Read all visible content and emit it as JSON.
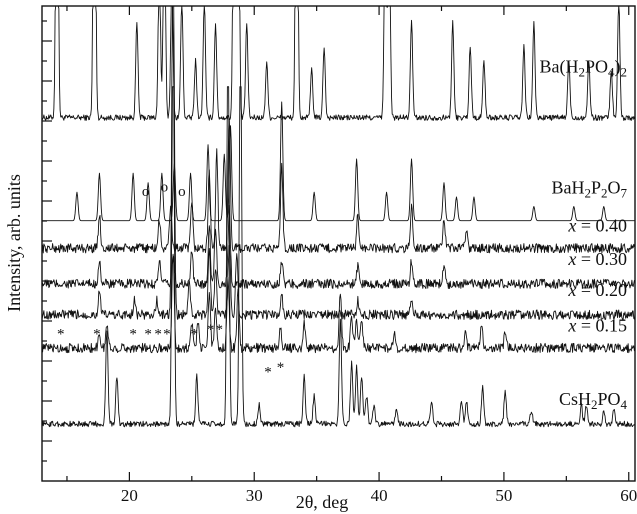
{
  "chart_data": {
    "type": "line",
    "xlabel": "2θ, deg",
    "ylabel": "Intensity, arb. units",
    "xlim": [
      13,
      60.5
    ],
    "x_ticks": [
      20,
      30,
      40,
      50,
      60
    ],
    "y_tick_labels": "none",
    "legend": "none",
    "grid": false,
    "series": [
      {
        "name": "Ba(H₂PO₄)₂",
        "label_parts": [
          "Ba(H",
          "2",
          "PO",
          "4",
          ")",
          "2"
        ],
        "baseline": 0.765,
        "noise": 0.006,
        "clip": 1.0,
        "peaks": [
          [
            14.2,
            0.9
          ],
          [
            17.2,
            0.9
          ],
          [
            20.6,
            0.2
          ],
          [
            22.4,
            0.35
          ],
          [
            22.8,
            0.5
          ],
          [
            23.4,
            0.3
          ],
          [
            24.2,
            0.25
          ],
          [
            25.3,
            0.12
          ],
          [
            26.0,
            0.25
          ],
          [
            26.9,
            0.2
          ],
          [
            28.4,
            0.9
          ],
          [
            28.7,
            0.9
          ],
          [
            29.4,
            0.2
          ],
          [
            31.0,
            0.12
          ],
          [
            33.4,
            0.9
          ],
          [
            34.6,
            0.1
          ],
          [
            35.6,
            0.15
          ],
          [
            40.5,
            0.45
          ],
          [
            40.8,
            0.5
          ],
          [
            42.6,
            0.2
          ],
          [
            45.9,
            0.2
          ],
          [
            47.3,
            0.15
          ],
          [
            48.4,
            0.12
          ],
          [
            51.6,
            0.15
          ],
          [
            52.4,
            0.2
          ],
          [
            55.2,
            0.12
          ],
          [
            56.8,
            0.12
          ],
          [
            58.6,
            0.1
          ],
          [
            59.2,
            0.25
          ]
        ]
      },
      {
        "name": "BaH₂P₂O₇",
        "label_parts": [
          "BaH",
          "2",
          "P",
          "2",
          "O",
          "7"
        ],
        "baseline": 0.548,
        "noise": 0.0,
        "clip": 1.0,
        "peaks": [
          [
            15.8,
            0.06
          ],
          [
            17.6,
            0.1
          ],
          [
            20.3,
            0.1
          ],
          [
            21.5,
            0.08
          ],
          [
            22.6,
            0.1
          ],
          [
            23.6,
            0.12
          ],
          [
            24.9,
            0.1
          ],
          [
            26.3,
            0.16
          ],
          [
            27.6,
            0.14
          ],
          [
            28.1,
            0.2
          ],
          [
            32.2,
            0.25
          ],
          [
            34.8,
            0.06
          ],
          [
            38.2,
            0.13
          ],
          [
            40.6,
            0.06
          ],
          [
            42.6,
            0.13
          ],
          [
            45.2,
            0.08
          ],
          [
            46.2,
            0.05
          ],
          [
            47.6,
            0.05
          ],
          [
            52.4,
            0.03
          ],
          [
            55.6,
            0.03
          ],
          [
            58.0,
            0.03
          ]
        ]
      },
      {
        "name": "x = 0.40",
        "label_var": "x",
        "label_rest": " = 0.40",
        "baseline": 0.49,
        "noise": 0.01,
        "clip": 1.0,
        "peaks": [
          [
            17.6,
            0.07
          ],
          [
            22.4,
            0.06
          ],
          [
            23.3,
            0.09
          ],
          [
            25.0,
            0.09
          ],
          [
            26.4,
            0.16
          ],
          [
            27.0,
            0.2
          ],
          [
            28.0,
            0.28
          ],
          [
            32.2,
            0.18
          ],
          [
            38.3,
            0.07
          ],
          [
            42.6,
            0.09
          ],
          [
            45.2,
            0.06
          ],
          [
            47.0,
            0.04
          ]
        ]
      },
      {
        "name": "x = 0.30",
        "label_var": "x",
        "label_rest": " = 0.30",
        "baseline": 0.415,
        "noise": 0.01,
        "clip": 1.0,
        "peaks": [
          [
            17.6,
            0.05
          ],
          [
            22.4,
            0.05
          ],
          [
            23.5,
            0.06
          ],
          [
            25.0,
            0.07
          ],
          [
            26.4,
            0.12
          ],
          [
            26.9,
            0.12
          ],
          [
            28.0,
            0.16
          ],
          [
            32.2,
            0.05
          ],
          [
            38.3,
            0.04
          ],
          [
            42.6,
            0.05
          ],
          [
            45.2,
            0.04
          ]
        ]
      },
      {
        "name": "x = 0.20",
        "label_var": "x",
        "label_rest": " = 0.20",
        "baseline": 0.35,
        "noise": 0.01,
        "clip": 1.0,
        "peaks": [
          [
            17.6,
            0.05
          ],
          [
            20.4,
            0.03
          ],
          [
            22.2,
            0.03
          ],
          [
            23.5,
            0.9
          ],
          [
            24.8,
            0.07
          ],
          [
            26.4,
            0.14
          ],
          [
            26.9,
            0.1
          ],
          [
            28.0,
            0.15
          ],
          [
            28.6,
            0.13
          ],
          [
            32.2,
            0.04
          ],
          [
            38.3,
            0.03
          ],
          [
            42.6,
            0.03
          ]
        ]
      },
      {
        "name": "x = 0.15",
        "label_var": "x",
        "label_rest": " = 0.15",
        "baseline": 0.28,
        "noise": 0.01,
        "clip": 1.0,
        "peaks": [
          [
            17.6,
            0.03
          ],
          [
            18.2,
            0.05
          ],
          [
            23.5,
            0.2
          ],
          [
            25.0,
            0.05
          ],
          [
            25.5,
            0.06
          ],
          [
            26.4,
            0.12
          ],
          [
            26.9,
            0.09
          ],
          [
            27.9,
            0.15
          ],
          [
            28.7,
            0.12
          ],
          [
            32.1,
            0.04
          ],
          [
            34.0,
            0.05
          ],
          [
            36.9,
            0.12
          ],
          [
            37.8,
            0.07
          ],
          [
            38.2,
            0.06
          ],
          [
            38.6,
            0.06
          ],
          [
            41.2,
            0.03
          ],
          [
            46.9,
            0.03
          ],
          [
            48.2,
            0.05
          ],
          [
            50.1,
            0.03
          ]
        ]
      },
      {
        "name": "CsH₂PO₄",
        "label_parts": [
          "CsH",
          "2",
          "PO",
          "4"
        ],
        "baseline": 0.12,
        "noise": 0.006,
        "clip": 0.83,
        "peaks": [
          [
            18.2,
            0.2
          ],
          [
            19.0,
            0.1
          ],
          [
            23.5,
            0.9
          ],
          [
            25.4,
            0.1
          ],
          [
            27.9,
            0.9
          ],
          [
            28.9,
            0.9
          ],
          [
            30.4,
            0.04
          ],
          [
            34.0,
            0.1
          ],
          [
            34.8,
            0.06
          ],
          [
            36.9,
            0.22
          ],
          [
            37.8,
            0.13
          ],
          [
            38.2,
            0.12
          ],
          [
            38.6,
            0.1
          ],
          [
            39.0,
            0.06
          ],
          [
            39.6,
            0.04
          ],
          [
            41.4,
            0.03
          ],
          [
            44.2,
            0.05
          ],
          [
            46.6,
            0.05
          ],
          [
            47.0,
            0.05
          ],
          [
            48.3,
            0.08
          ],
          [
            50.1,
            0.07
          ],
          [
            52.2,
            0.03
          ],
          [
            56.2,
            0.04
          ],
          [
            56.6,
            0.04
          ],
          [
            58.0,
            0.03
          ],
          [
            58.8,
            0.03
          ]
        ]
      }
    ],
    "annotations": {
      "star": "*",
      "circle": "o",
      "star_positions": [
        [
          14.5,
          0.3
        ],
        [
          17.4,
          0.3
        ],
        [
          20.3,
          0.3
        ],
        [
          21.5,
          0.3
        ],
        [
          22.3,
          0.3
        ],
        [
          23.0,
          0.3
        ],
        [
          25.2,
          0.3
        ],
        [
          26.5,
          0.31
        ],
        [
          27.2,
          0.31
        ],
        [
          31.1,
          0.22
        ],
        [
          32.1,
          0.23
        ]
      ],
      "circle_positions": [
        [
          21.3,
          0.6
        ],
        [
          22.8,
          0.61
        ],
        [
          24.2,
          0.6
        ]
      ]
    }
  }
}
